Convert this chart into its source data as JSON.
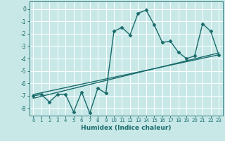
{
  "xlabel": "Humidex (Indice chaleur)",
  "bg_color": "#c8e8e8",
  "grid_color": "#ffffff",
  "line_color": "#1a6b6b",
  "xlim": [
    -0.5,
    23.5
  ],
  "ylim": [
    -8.6,
    0.6
  ],
  "yticks": [
    0,
    -1,
    -2,
    -3,
    -4,
    -5,
    -6,
    -7,
    -8
  ],
  "xticks": [
    0,
    1,
    2,
    3,
    4,
    5,
    6,
    7,
    8,
    9,
    10,
    11,
    12,
    13,
    14,
    15,
    16,
    17,
    18,
    19,
    20,
    21,
    22,
    23
  ],
  "main_line_x": [
    0,
    1,
    2,
    3,
    4,
    5,
    6,
    7,
    8,
    9,
    10,
    11,
    12,
    13,
    14,
    15,
    16,
    17,
    18,
    19,
    20,
    21,
    22,
    23
  ],
  "main_line_y": [
    -7.0,
    -6.9,
    -7.5,
    -6.9,
    -6.9,
    -8.3,
    -6.7,
    -8.4,
    -6.4,
    -6.8,
    -1.8,
    -1.5,
    -2.1,
    -0.35,
    -0.1,
    -1.3,
    -2.7,
    -2.6,
    -3.5,
    -4.0,
    -3.8,
    -1.2,
    -1.8,
    -3.7
  ],
  "reg_line1_x": [
    0,
    23
  ],
  "reg_line1_y": [
    -6.9,
    -3.7
  ],
  "reg_line2_x": [
    0,
    23
  ],
  "reg_line2_y": [
    -7.2,
    -3.55
  ],
  "marker": "D",
  "markersize": 2.5,
  "linewidth": 1.0
}
